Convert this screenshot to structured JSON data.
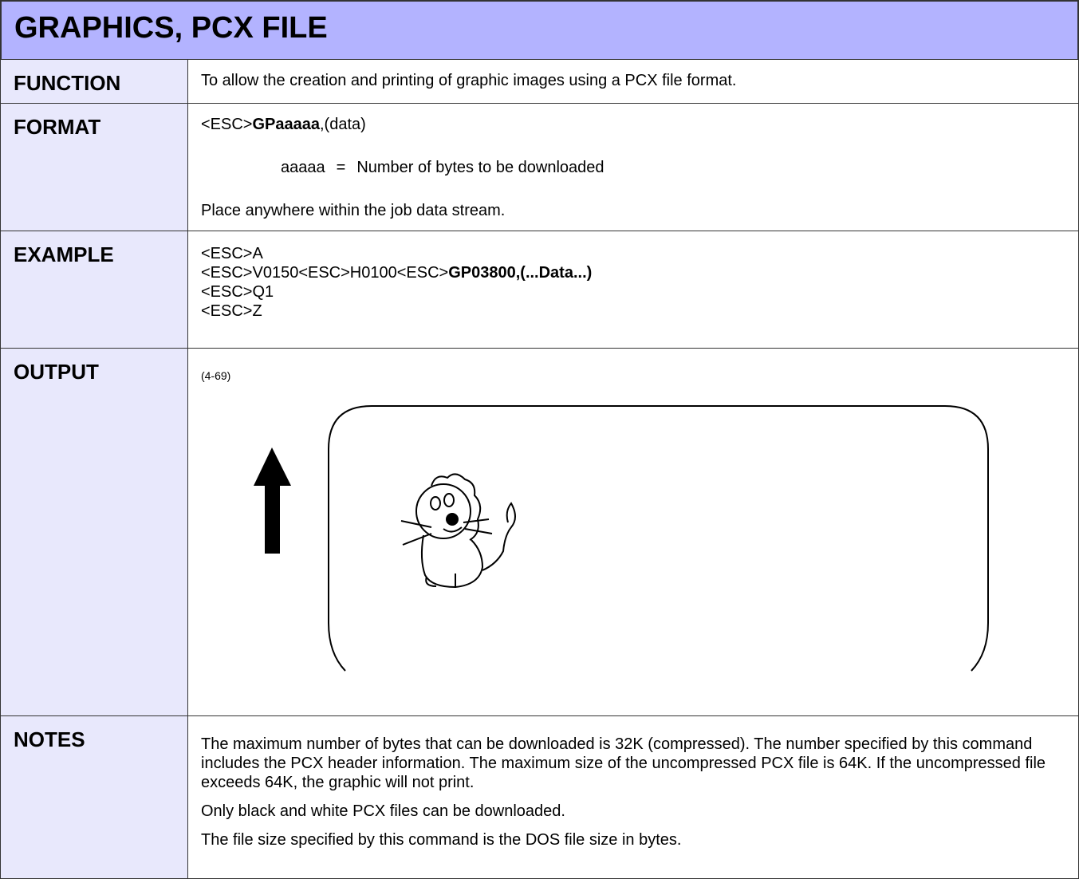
{
  "header": {
    "title": "GRAPHICS, PCX FILE"
  },
  "rows": [
    {
      "label": "FUNCTION",
      "text": "To allow the creation and printing of graphic images using a PCX file format."
    },
    {
      "label": "FORMAT",
      "syntax": [
        "<ESC>",
        "GPaaaaa",
        ",(data)"
      ],
      "parameter": {
        "name": "aaaaa",
        "sign": "=",
        "description": "Number of bytes to be downloaded"
      },
      "note": "Place anywhere within the job data stream."
    },
    {
      "label": "EXAMPLE",
      "lines": [
        [
          "<ESC>A"
        ],
        [
          "<ESC>V0150<ESC>H0100<ESC>",
          "GP03800,(...Data...)"
        ],
        [
          "<ESC>Q1"
        ],
        [
          "<ESC>Z"
        ]
      ]
    },
    {
      "label": "OUTPUT",
      "figure_ref": "(4-69)"
    },
    {
      "label": "NOTES",
      "paragraphs": [
        "The maximum number of bytes that can be downloaded is 32K (compressed). The number specified by this command includes the PCX header information. The maximum size of the uncompressed PCX file is 64K. If the uncompressed file exceeds 64K, the graphic will not print.",
        "Only black and white PCX files can be downloaded.",
        "The file size specified by this command is the DOS file size in bytes."
      ]
    }
  ]
}
